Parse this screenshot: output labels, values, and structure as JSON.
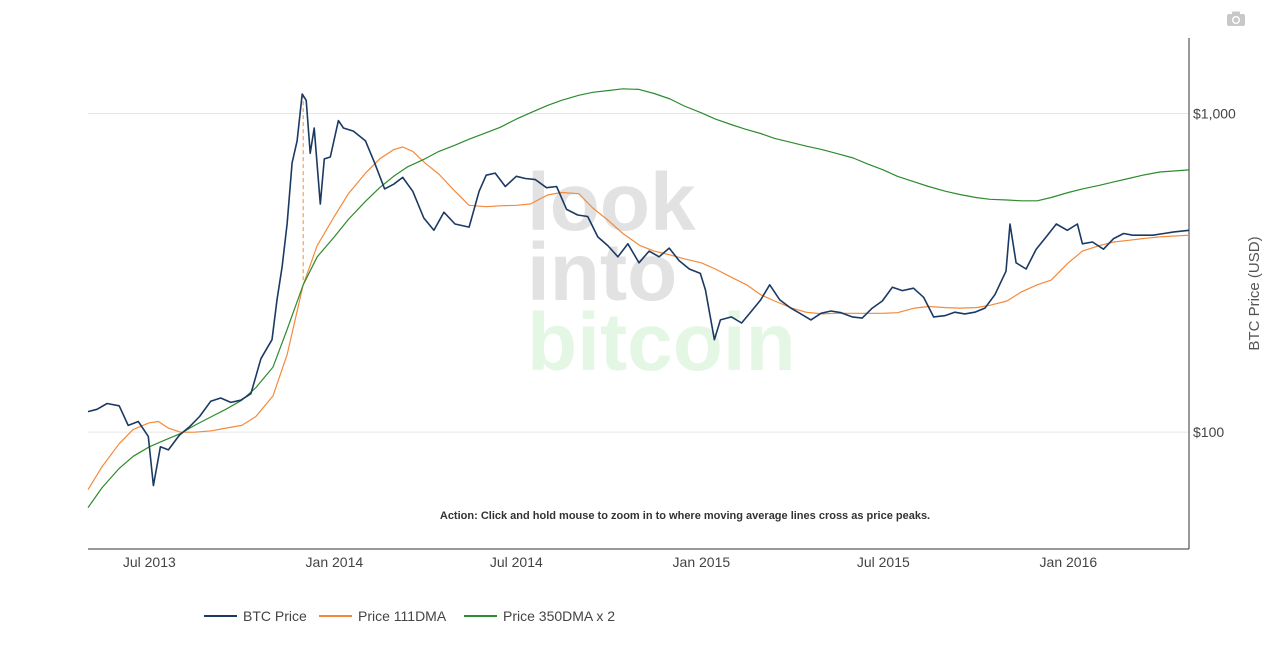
{
  "chart_data": {
    "type": "line",
    "title": "",
    "xlabel": "",
    "ylabel": "BTC Price (USD)",
    "y_scale": "log",
    "ylim": [
      43,
      1700
    ],
    "x_range": [
      "2013-05-01",
      "2016-04-30"
    ],
    "y_ticks": [
      {
        "value": 100,
        "label": "$100"
      },
      {
        "value": 1000,
        "label": "$1,000"
      }
    ],
    "x_ticks": [
      {
        "date": "2013-07-01",
        "label": "Jul 2013"
      },
      {
        "date": "2014-01-01",
        "label": "Jan 2014"
      },
      {
        "date": "2014-07-01",
        "label": "Jul 2014"
      },
      {
        "date": "2015-01-01",
        "label": "Jan 2015"
      },
      {
        "date": "2015-07-01",
        "label": "Jul 2015"
      },
      {
        "date": "2016-01-01",
        "label": "Jan 2016"
      }
    ],
    "grid": "horizontal",
    "legend_position": "bottom-left",
    "annotation": "Action: Click and hold mouse to zoom in to where moving average lines cross as price peaks.",
    "watermark": [
      "look",
      "into",
      "bitcoin"
    ],
    "crossover_marker": {
      "date": "2013-12-01",
      "y_low": 300,
      "y_high": 1150
    },
    "series": [
      {
        "name": "BTC Price",
        "color": "#1b3a63",
        "points": [
          [
            "2013-05-01",
            116
          ],
          [
            "2013-05-10",
            118
          ],
          [
            "2013-05-20",
            123
          ],
          [
            "2013-06-01",
            121
          ],
          [
            "2013-06-10",
            105
          ],
          [
            "2013-06-20",
            108
          ],
          [
            "2013-06-30",
            97
          ],
          [
            "2013-07-05",
            68
          ],
          [
            "2013-07-12",
            90
          ],
          [
            "2013-07-20",
            88
          ],
          [
            "2013-07-31",
            98
          ],
          [
            "2013-08-10",
            104
          ],
          [
            "2013-08-20",
            112
          ],
          [
            "2013-08-31",
            125
          ],
          [
            "2013-09-10",
            128
          ],
          [
            "2013-09-20",
            124
          ],
          [
            "2013-09-30",
            126
          ],
          [
            "2013-10-10",
            132
          ],
          [
            "2013-10-20",
            170
          ],
          [
            "2013-10-31",
            195
          ],
          [
            "2013-11-05",
            260
          ],
          [
            "2013-11-10",
            330
          ],
          [
            "2013-11-15",
            450
          ],
          [
            "2013-11-20",
            700
          ],
          [
            "2013-11-25",
            820
          ],
          [
            "2013-11-30",
            1150
          ],
          [
            "2013-12-04",
            1100
          ],
          [
            "2013-12-08",
            750
          ],
          [
            "2013-12-12",
            900
          ],
          [
            "2013-12-18",
            520
          ],
          [
            "2013-12-22",
            720
          ],
          [
            "2013-12-28",
            730
          ],
          [
            "2014-01-05",
            950
          ],
          [
            "2014-01-10",
            900
          ],
          [
            "2014-01-20",
            880
          ],
          [
            "2014-02-01",
            820
          ],
          [
            "2014-02-10",
            700
          ],
          [
            "2014-02-20",
            580
          ],
          [
            "2014-03-01",
            600
          ],
          [
            "2014-03-10",
            630
          ],
          [
            "2014-03-20",
            570
          ],
          [
            "2014-03-31",
            470
          ],
          [
            "2014-04-10",
            430
          ],
          [
            "2014-04-20",
            490
          ],
          [
            "2014-05-01",
            450
          ],
          [
            "2014-05-15",
            440
          ],
          [
            "2014-05-25",
            570
          ],
          [
            "2014-06-01",
            640
          ],
          [
            "2014-06-10",
            650
          ],
          [
            "2014-06-20",
            590
          ],
          [
            "2014-07-01",
            635
          ],
          [
            "2014-07-10",
            625
          ],
          [
            "2014-07-20",
            620
          ],
          [
            "2014-07-31",
            585
          ],
          [
            "2014-08-10",
            590
          ],
          [
            "2014-08-20",
            500
          ],
          [
            "2014-08-31",
            480
          ],
          [
            "2014-09-10",
            475
          ],
          [
            "2014-09-20",
            410
          ],
          [
            "2014-09-30",
            385
          ],
          [
            "2014-10-10",
            355
          ],
          [
            "2014-10-20",
            390
          ],
          [
            "2014-10-31",
            340
          ],
          [
            "2014-11-10",
            370
          ],
          [
            "2014-11-20",
            355
          ],
          [
            "2014-11-30",
            378
          ],
          [
            "2014-12-10",
            345
          ],
          [
            "2014-12-20",
            325
          ],
          [
            "2014-12-31",
            315
          ],
          [
            "2015-01-05",
            280
          ],
          [
            "2015-01-14",
            195
          ],
          [
            "2015-01-20",
            225
          ],
          [
            "2015-01-31",
            230
          ],
          [
            "2015-02-10",
            220
          ],
          [
            "2015-02-20",
            240
          ],
          [
            "2015-03-01",
            260
          ],
          [
            "2015-03-10",
            290
          ],
          [
            "2015-03-20",
            260
          ],
          [
            "2015-03-31",
            245
          ],
          [
            "2015-04-10",
            235
          ],
          [
            "2015-04-20",
            225
          ],
          [
            "2015-04-30",
            236
          ],
          [
            "2015-05-10",
            240
          ],
          [
            "2015-05-20",
            237
          ],
          [
            "2015-05-31",
            230
          ],
          [
            "2015-06-10",
            228
          ],
          [
            "2015-06-20",
            245
          ],
          [
            "2015-06-30",
            258
          ],
          [
            "2015-07-10",
            285
          ],
          [
            "2015-07-20",
            278
          ],
          [
            "2015-07-31",
            283
          ],
          [
            "2015-08-10",
            265
          ],
          [
            "2015-08-20",
            230
          ],
          [
            "2015-08-31",
            232
          ],
          [
            "2015-09-10",
            238
          ],
          [
            "2015-09-20",
            235
          ],
          [
            "2015-09-30",
            238
          ],
          [
            "2015-10-10",
            245
          ],
          [
            "2015-10-20",
            270
          ],
          [
            "2015-10-31",
            320
          ],
          [
            "2015-11-04",
            450
          ],
          [
            "2015-11-10",
            340
          ],
          [
            "2015-11-20",
            325
          ],
          [
            "2015-11-30",
            375
          ],
          [
            "2015-12-10",
            410
          ],
          [
            "2015-12-20",
            450
          ],
          [
            "2015-12-31",
            430
          ],
          [
            "2016-01-10",
            450
          ],
          [
            "2016-01-15",
            390
          ],
          [
            "2016-01-25",
            395
          ],
          [
            "2016-02-05",
            375
          ],
          [
            "2016-02-15",
            405
          ],
          [
            "2016-02-25",
            420
          ],
          [
            "2016-03-05",
            415
          ],
          [
            "2016-03-15",
            415
          ],
          [
            "2016-03-25",
            415
          ],
          [
            "2016-04-05",
            420
          ],
          [
            "2016-04-15",
            425
          ],
          [
            "2016-04-30",
            430
          ]
        ]
      },
      {
        "name": "Price 111DMA",
        "color": "#f5893a",
        "points": [
          [
            "2013-05-01",
            66
          ],
          [
            "2013-05-15",
            78
          ],
          [
            "2013-06-01",
            92
          ],
          [
            "2013-06-15",
            102
          ],
          [
            "2013-07-01",
            107
          ],
          [
            "2013-07-10",
            108
          ],
          [
            "2013-07-20",
            103
          ],
          [
            "2013-08-01",
            100
          ],
          [
            "2013-08-15",
            100
          ],
          [
            "2013-09-01",
            101
          ],
          [
            "2013-09-15",
            103
          ],
          [
            "2013-10-01",
            105
          ],
          [
            "2013-10-15",
            112
          ],
          [
            "2013-11-01",
            130
          ],
          [
            "2013-11-15",
            175
          ],
          [
            "2013-12-01",
            290
          ],
          [
            "2013-12-15",
            385
          ],
          [
            "2014-01-01",
            475
          ],
          [
            "2014-01-15",
            560
          ],
          [
            "2014-02-01",
            650
          ],
          [
            "2014-02-15",
            720
          ],
          [
            "2014-03-01",
            770
          ],
          [
            "2014-03-10",
            785
          ],
          [
            "2014-03-20",
            760
          ],
          [
            "2014-04-01",
            700
          ],
          [
            "2014-04-15",
            645
          ],
          [
            "2014-05-01",
            570
          ],
          [
            "2014-05-15",
            515
          ],
          [
            "2014-06-01",
            510
          ],
          [
            "2014-06-15",
            513
          ],
          [
            "2014-07-01",
            515
          ],
          [
            "2014-07-15",
            520
          ],
          [
            "2014-08-01",
            555
          ],
          [
            "2014-08-15",
            565
          ],
          [
            "2014-09-01",
            560
          ],
          [
            "2014-09-15",
            505
          ],
          [
            "2014-10-01",
            460
          ],
          [
            "2014-10-15",
            420
          ],
          [
            "2014-11-01",
            385
          ],
          [
            "2014-11-15",
            370
          ],
          [
            "2014-12-01",
            360
          ],
          [
            "2014-12-15",
            350
          ],
          [
            "2015-01-01",
            340
          ],
          [
            "2015-01-15",
            325
          ],
          [
            "2015-02-01",
            305
          ],
          [
            "2015-02-15",
            290
          ],
          [
            "2015-03-01",
            270
          ],
          [
            "2015-03-15",
            258
          ],
          [
            "2015-04-01",
            245
          ],
          [
            "2015-04-15",
            238
          ],
          [
            "2015-05-01",
            235
          ],
          [
            "2015-05-15",
            236
          ],
          [
            "2015-06-01",
            236
          ],
          [
            "2015-06-15",
            236
          ],
          [
            "2015-07-01",
            236
          ],
          [
            "2015-07-15",
            237
          ],
          [
            "2015-08-01",
            245
          ],
          [
            "2015-08-15",
            248
          ],
          [
            "2015-09-01",
            246
          ],
          [
            "2015-09-15",
            245
          ],
          [
            "2015-10-01",
            246
          ],
          [
            "2015-10-15",
            250
          ],
          [
            "2015-11-01",
            258
          ],
          [
            "2015-11-15",
            275
          ],
          [
            "2015-12-01",
            290
          ],
          [
            "2015-12-15",
            300
          ],
          [
            "2016-01-01",
            340
          ],
          [
            "2016-01-15",
            370
          ],
          [
            "2016-02-01",
            385
          ],
          [
            "2016-02-15",
            395
          ],
          [
            "2016-03-01",
            400
          ],
          [
            "2016-03-15",
            405
          ],
          [
            "2016-04-01",
            410
          ],
          [
            "2016-04-30",
            415
          ]
        ]
      },
      {
        "name": "Price 350DMA x 2",
        "color": "#2e8b2e",
        "points": [
          [
            "2013-05-01",
            58
          ],
          [
            "2013-05-15",
            67
          ],
          [
            "2013-06-01",
            77
          ],
          [
            "2013-06-15",
            84
          ],
          [
            "2013-07-01",
            90
          ],
          [
            "2013-07-15",
            94
          ],
          [
            "2013-08-01",
            99
          ],
          [
            "2013-08-15",
            105
          ],
          [
            "2013-09-01",
            112
          ],
          [
            "2013-09-15",
            118
          ],
          [
            "2013-10-01",
            126
          ],
          [
            "2013-10-15",
            138
          ],
          [
            "2013-11-01",
            160
          ],
          [
            "2013-11-15",
            210
          ],
          [
            "2013-12-01",
            290
          ],
          [
            "2013-12-15",
            355
          ],
          [
            "2014-01-01",
            410
          ],
          [
            "2014-01-15",
            465
          ],
          [
            "2014-02-01",
            530
          ],
          [
            "2014-02-15",
            585
          ],
          [
            "2014-03-01",
            635
          ],
          [
            "2014-03-15",
            680
          ],
          [
            "2014-04-01",
            720
          ],
          [
            "2014-04-15",
            760
          ],
          [
            "2014-05-01",
            795
          ],
          [
            "2014-05-15",
            830
          ],
          [
            "2014-06-01",
            870
          ],
          [
            "2014-06-15",
            905
          ],
          [
            "2014-07-01",
            960
          ],
          [
            "2014-07-15",
            1005
          ],
          [
            "2014-08-01",
            1060
          ],
          [
            "2014-08-15",
            1100
          ],
          [
            "2014-09-01",
            1140
          ],
          [
            "2014-09-15",
            1165
          ],
          [
            "2014-10-01",
            1180
          ],
          [
            "2014-10-15",
            1195
          ],
          [
            "2014-10-31",
            1190
          ],
          [
            "2014-11-15",
            1155
          ],
          [
            "2014-12-01",
            1110
          ],
          [
            "2014-12-15",
            1055
          ],
          [
            "2015-01-01",
            1005
          ],
          [
            "2015-01-15",
            960
          ],
          [
            "2015-02-01",
            920
          ],
          [
            "2015-02-15",
            890
          ],
          [
            "2015-03-01",
            865
          ],
          [
            "2015-03-15",
            835
          ],
          [
            "2015-04-01",
            810
          ],
          [
            "2015-04-15",
            790
          ],
          [
            "2015-05-01",
            770
          ],
          [
            "2015-05-15",
            750
          ],
          [
            "2015-06-01",
            725
          ],
          [
            "2015-06-15",
            695
          ],
          [
            "2015-07-01",
            665
          ],
          [
            "2015-07-15",
            635
          ],
          [
            "2015-08-01",
            610
          ],
          [
            "2015-08-15",
            590
          ],
          [
            "2015-09-01",
            570
          ],
          [
            "2015-09-15",
            557
          ],
          [
            "2015-10-01",
            545
          ],
          [
            "2015-10-15",
            538
          ],
          [
            "2015-11-01",
            535
          ],
          [
            "2015-11-15",
            532
          ],
          [
            "2015-12-01",
            532
          ],
          [
            "2015-12-15",
            545
          ],
          [
            "2016-01-01",
            565
          ],
          [
            "2016-01-15",
            580
          ],
          [
            "2016-02-01",
            595
          ],
          [
            "2016-02-15",
            610
          ],
          [
            "2016-03-01",
            625
          ],
          [
            "2016-03-15",
            640
          ],
          [
            "2016-04-01",
            655
          ],
          [
            "2016-04-30",
            665
          ]
        ]
      }
    ]
  }
}
